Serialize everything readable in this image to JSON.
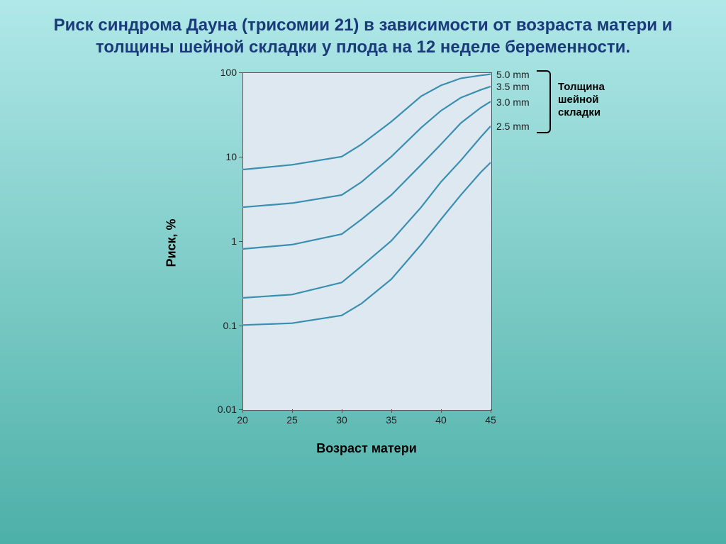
{
  "title": "Риск синдрома Дауна (трисомии 21) в зависимости от возраста матери и толщины шейной складки у плода на 12 неделе беременности.",
  "chart": {
    "type": "line",
    "background_color": "#dde8f0",
    "border_color": "#555555",
    "line_color": "#3a8fb0",
    "line_width": 2.2,
    "ylabel": "Риск, %",
    "xlabel": "Возраст матери",
    "label_fontsize": 18,
    "tick_fontsize": 14,
    "yscale": "log",
    "ylim_labels": [
      "0.01",
      "0.1",
      "1",
      "10",
      "100"
    ],
    "y_decades": [
      0.01,
      0.1,
      1,
      10,
      100
    ],
    "xlim": [
      20,
      45
    ],
    "xticks": [
      20,
      25,
      30,
      35,
      40,
      45
    ],
    "legend_title": "Толщина\nшейной\nскладки",
    "series": [
      {
        "label": "5.0 mm",
        "x": [
          20,
          25,
          30,
          32,
          35,
          38,
          40,
          42,
          44,
          45
        ],
        "y": [
          7,
          8,
          10,
          14,
          26,
          52,
          70,
          85,
          92,
          95
        ]
      },
      {
        "label": "3.5 mm",
        "x": [
          20,
          25,
          30,
          32,
          35,
          38,
          40,
          42,
          44,
          45
        ],
        "y": [
          2.5,
          2.8,
          3.5,
          5,
          10,
          22,
          35,
          50,
          62,
          68
        ]
      },
      {
        "label": "3.0 mm",
        "x": [
          20,
          25,
          30,
          32,
          35,
          38,
          40,
          42,
          44,
          45
        ],
        "y": [
          0.8,
          0.9,
          1.2,
          1.8,
          3.5,
          8,
          14,
          25,
          38,
          45
        ]
      },
      {
        "label": "2.5 mm",
        "x": [
          20,
          25,
          30,
          32,
          35,
          38,
          40,
          42,
          44,
          45
        ],
        "y": [
          0.21,
          0.23,
          0.32,
          0.5,
          1.0,
          2.5,
          5,
          9,
          17,
          23
        ]
      },
      {
        "label": "",
        "x": [
          20,
          25,
          30,
          32,
          35,
          38,
          40,
          42,
          44,
          45
        ],
        "y": [
          0.1,
          0.105,
          0.13,
          0.18,
          0.35,
          0.9,
          1.8,
          3.5,
          6.5,
          8.5
        ]
      }
    ]
  }
}
